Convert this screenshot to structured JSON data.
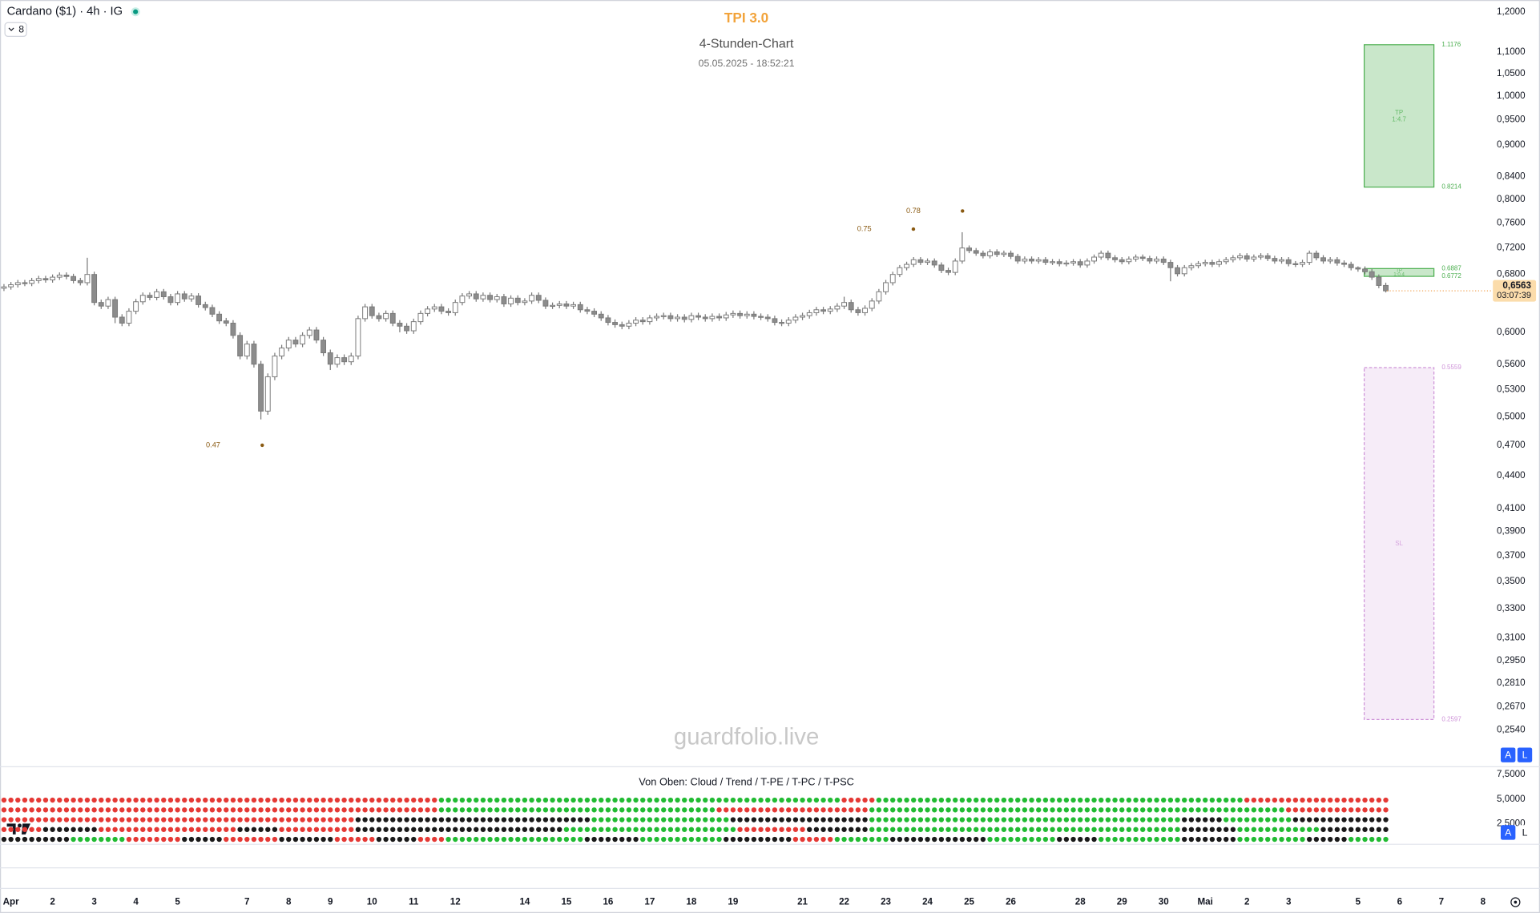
{
  "chart_data": {
    "type": "candlestick",
    "symbol": "Cardano ($1) · 4h · IG",
    "indicator_count": 8,
    "title": "TPI 3.0",
    "subtitle": "4-Stunden-Chart",
    "timestamp": "05.05.2025 - 18:52:21",
    "watermark": "guardfolio.live",
    "log_scale": true,
    "grid": false,
    "up_color": "#ffffff",
    "down_color": "#8c8c8c",
    "wick_color": "#7a7a7a",
    "ylim": [
      0.235,
      1.231
    ],
    "yticks": [
      {
        "value": 1.2,
        "label": "1,2000"
      },
      {
        "value": 1.1,
        "label": "1,1000"
      },
      {
        "value": 1.05,
        "label": "1,0500"
      },
      {
        "value": 1.0,
        "label": "1,0000"
      },
      {
        "value": 0.95,
        "label": "0,9500"
      },
      {
        "value": 0.9,
        "label": "0,9000"
      },
      {
        "value": 0.84,
        "label": "0,8400"
      },
      {
        "value": 0.8,
        "label": "0,8000"
      },
      {
        "value": 0.76,
        "label": "0,7600"
      },
      {
        "value": 0.72,
        "label": "0,7200"
      },
      {
        "value": 0.68,
        "label": "0,6800"
      },
      {
        "value": 0.6,
        "label": "0,6000"
      },
      {
        "value": 0.56,
        "label": "0,5600"
      },
      {
        "value": 0.53,
        "label": "0,5300"
      },
      {
        "value": 0.5,
        "label": "0,5000"
      },
      {
        "value": 0.47,
        "label": "0,4700"
      },
      {
        "value": 0.44,
        "label": "0,4400"
      },
      {
        "value": 0.41,
        "label": "0,4100"
      },
      {
        "value": 0.39,
        "label": "0,3900"
      },
      {
        "value": 0.37,
        "label": "0,3700"
      },
      {
        "value": 0.35,
        "label": "0,3500"
      },
      {
        "value": 0.33,
        "label": "0,3300"
      },
      {
        "value": 0.31,
        "label": "0,3100"
      },
      {
        "value": 0.295,
        "label": "0,2950"
      },
      {
        "value": 0.281,
        "label": "0,2810"
      },
      {
        "value": 0.267,
        "label": "0,2670"
      },
      {
        "value": 0.254,
        "label": "0,2540"
      }
    ],
    "categories": [
      null,
      "Apr",
      null,
      null,
      null,
      null,
      null,
      "2",
      null,
      null,
      null,
      null,
      null,
      "3",
      null,
      null,
      null,
      null,
      null,
      "4",
      null,
      null,
      null,
      null,
      null,
      "5",
      null,
      null,
      null,
      null,
      null,
      null,
      null,
      null,
      null,
      "7",
      null,
      null,
      null,
      null,
      null,
      "8",
      null,
      null,
      null,
      null,
      null,
      "9",
      null,
      null,
      null,
      null,
      null,
      "10",
      null,
      null,
      null,
      null,
      null,
      "11",
      null,
      null,
      null,
      null,
      null,
      "12",
      null,
      null,
      null,
      null,
      null,
      null,
      null,
      null,
      null,
      "14",
      null,
      null,
      null,
      null,
      null,
      "15",
      null,
      null,
      null,
      null,
      null,
      "16",
      null,
      null,
      null,
      null,
      null,
      "17",
      null,
      null,
      null,
      null,
      null,
      "18",
      null,
      null,
      null,
      null,
      null,
      "19",
      null,
      null,
      null,
      null,
      null,
      null,
      null,
      null,
      null,
      "21",
      null,
      null,
      null,
      null,
      null,
      "22",
      null,
      null,
      null,
      null,
      null,
      "23",
      null,
      null,
      null,
      null,
      null,
      "24",
      null,
      null,
      null,
      null,
      null,
      "25",
      null,
      null,
      null,
      null,
      null,
      "26",
      null,
      null,
      null,
      null,
      null,
      null,
      null,
      null,
      null,
      "28",
      null,
      null,
      null,
      null,
      null,
      "29",
      null,
      null,
      null,
      null,
      null,
      "30",
      null,
      null,
      null,
      null,
      null,
      "Mai",
      null,
      null,
      null,
      null,
      null,
      "2",
      null,
      null,
      null,
      null,
      null,
      "3",
      null,
      null,
      null,
      null,
      null,
      null,
      null,
      null,
      null,
      "5",
      null,
      null,
      null,
      null,
      null,
      "6",
      null,
      null,
      null,
      null,
      null,
      "7",
      null,
      null,
      null,
      null,
      null,
      "8",
      null,
      null,
      null
    ],
    "open": [
      0.66,
      0.662,
      0.665,
      0.668,
      0.667,
      0.671,
      0.674,
      0.672,
      0.676,
      0.679,
      0.677,
      0.671,
      0.668,
      0.68,
      0.64,
      0.635,
      0.644,
      0.62,
      0.612,
      0.628,
      0.641,
      0.65,
      0.647,
      0.655,
      0.648,
      0.64,
      0.652,
      0.645,
      0.649,
      0.637,
      0.633,
      0.624,
      0.615,
      0.612,
      0.596,
      0.57,
      0.585,
      0.56,
      0.506,
      0.545,
      0.57,
      0.58,
      0.59,
      0.585,
      0.596,
      0.603,
      0.59,
      0.574,
      0.56,
      0.568,
      0.563,
      0.57,
      0.618,
      0.634,
      0.622,
      0.618,
      0.625,
      0.612,
      0.608,
      0.602,
      0.614,
      0.625,
      0.631,
      0.634,
      0.628,
      0.626,
      0.64,
      0.649,
      0.652,
      0.645,
      0.65,
      0.644,
      0.648,
      0.638,
      0.646,
      0.64,
      0.642,
      0.65,
      0.643,
      0.635,
      0.636,
      0.638,
      0.635,
      0.637,
      0.63,
      0.628,
      0.624,
      0.619,
      0.613,
      0.61,
      0.608,
      0.612,
      0.616,
      0.614,
      0.619,
      0.621,
      0.622,
      0.618,
      0.62,
      0.617,
      0.622,
      0.62,
      0.618,
      0.621,
      0.619,
      0.623,
      0.625,
      0.622,
      0.624,
      0.621,
      0.62,
      0.618,
      0.613,
      0.612,
      0.616,
      0.62,
      0.622,
      0.626,
      0.63,
      0.628,
      0.631,
      0.635,
      0.64,
      0.63,
      0.626,
      0.632,
      0.642,
      0.655,
      0.668,
      0.68,
      0.69,
      0.695,
      0.702,
      0.698,
      0.7,
      0.694,
      0.686,
      0.683,
      0.7,
      0.72,
      0.716,
      0.712,
      0.708,
      0.714,
      0.71,
      0.712,
      0.707,
      0.7,
      0.703,
      0.7,
      0.702,
      0.698,
      0.699,
      0.696,
      0.697,
      0.699,
      0.694,
      0.7,
      0.706,
      0.712,
      0.705,
      0.702,
      0.699,
      0.703,
      0.706,
      0.704,
      0.7,
      0.703,
      0.698,
      0.69,
      0.681,
      0.69,
      0.693,
      0.696,
      0.698,
      0.695,
      0.699,
      0.702,
      0.705,
      0.708,
      0.703,
      0.706,
      0.708,
      0.704,
      0.7,
      0.702,
      0.696,
      0.695,
      0.698,
      0.712,
      0.705,
      0.7,
      0.702,
      0.697,
      0.695,
      0.69,
      0.688,
      0.684,
      0.676,
      0.664,
      null,
      null,
      null,
      null,
      null,
      null,
      null,
      null,
      null,
      null,
      null,
      null,
      null,
      null,
      null,
      null,
      null
    ],
    "high": [
      0.666,
      0.669,
      0.672,
      0.672,
      0.675,
      0.678,
      0.678,
      0.68,
      0.683,
      0.683,
      0.681,
      0.675,
      0.705,
      0.684,
      0.644,
      0.648,
      0.648,
      0.624,
      0.632,
      0.645,
      0.654,
      0.654,
      0.659,
      0.659,
      0.652,
      0.656,
      0.656,
      0.653,
      0.653,
      0.641,
      0.637,
      0.628,
      0.619,
      0.616,
      0.6,
      0.589,
      0.589,
      0.564,
      0.549,
      0.574,
      0.584,
      0.594,
      0.594,
      0.6,
      0.607,
      0.607,
      0.594,
      0.578,
      0.572,
      0.572,
      0.574,
      0.622,
      0.638,
      0.638,
      0.626,
      0.629,
      0.629,
      0.616,
      0.612,
      0.618,
      0.629,
      0.635,
      0.638,
      0.638,
      0.632,
      0.644,
      0.653,
      0.656,
      0.656,
      0.654,
      0.654,
      0.652,
      0.652,
      0.65,
      0.65,
      0.646,
      0.654,
      0.654,
      0.647,
      0.64,
      0.642,
      0.642,
      0.641,
      0.641,
      0.634,
      0.632,
      0.628,
      0.623,
      0.617,
      0.614,
      0.616,
      0.62,
      0.62,
      0.623,
      0.625,
      0.626,
      0.626,
      0.624,
      0.624,
      0.626,
      0.626,
      0.624,
      0.625,
      0.625,
      0.627,
      0.629,
      0.629,
      0.628,
      0.628,
      0.625,
      0.624,
      0.622,
      0.617,
      0.62,
      0.624,
      0.626,
      0.63,
      0.634,
      0.634,
      0.635,
      0.639,
      0.648,
      0.644,
      0.634,
      0.636,
      0.646,
      0.659,
      0.672,
      0.684,
      0.694,
      0.699,
      0.706,
      0.706,
      0.704,
      0.704,
      0.698,
      0.69,
      0.704,
      0.745,
      0.724,
      0.72,
      0.716,
      0.718,
      0.718,
      0.716,
      0.716,
      0.711,
      0.707,
      0.707,
      0.706,
      0.706,
      0.703,
      0.703,
      0.701,
      0.703,
      0.703,
      0.704,
      0.71,
      0.716,
      0.716,
      0.709,
      0.706,
      0.707,
      0.71,
      0.71,
      0.708,
      0.707,
      0.707,
      0.702,
      0.694,
      0.694,
      0.697,
      0.7,
      0.702,
      0.702,
      0.703,
      0.706,
      0.709,
      0.712,
      0.712,
      0.71,
      0.712,
      0.712,
      0.708,
      0.706,
      0.706,
      0.7,
      0.702,
      0.716,
      0.716,
      0.709,
      0.706,
      0.706,
      0.701,
      0.699,
      0.692,
      0.692,
      0.688,
      0.68,
      0.668,
      null,
      null,
      null,
      null,
      null,
      null,
      null,
      null,
      null,
      null,
      null,
      null,
      null,
      null,
      null,
      null,
      null
    ],
    "low": [
      0.656,
      0.658,
      0.661,
      0.663,
      0.663,
      0.667,
      0.668,
      0.668,
      0.672,
      0.673,
      0.667,
      0.664,
      0.664,
      0.636,
      0.631,
      0.631,
      0.612,
      0.608,
      0.608,
      0.624,
      0.637,
      0.643,
      0.643,
      0.644,
      0.636,
      0.636,
      0.641,
      0.641,
      0.633,
      0.629,
      0.62,
      0.611,
      0.608,
      0.592,
      0.566,
      0.566,
      0.556,
      0.497,
      0.502,
      0.541,
      0.566,
      0.576,
      0.581,
      0.581,
      0.592,
      0.586,
      0.57,
      0.553,
      0.556,
      0.559,
      0.559,
      0.566,
      0.614,
      0.618,
      0.614,
      0.614,
      0.608,
      0.6,
      0.598,
      0.598,
      0.61,
      0.621,
      0.627,
      0.624,
      0.622,
      0.622,
      0.636,
      0.645,
      0.641,
      0.641,
      0.64,
      0.64,
      0.634,
      0.634,
      0.636,
      0.636,
      0.638,
      0.639,
      0.631,
      0.631,
      0.632,
      0.631,
      0.631,
      0.626,
      0.624,
      0.62,
      0.615,
      0.609,
      0.606,
      0.604,
      0.604,
      0.608,
      0.61,
      0.61,
      0.615,
      0.617,
      0.614,
      0.614,
      0.613,
      0.613,
      0.616,
      0.614,
      0.614,
      0.615,
      0.615,
      0.619,
      0.618,
      0.618,
      0.617,
      0.616,
      0.614,
      0.609,
      0.608,
      0.608,
      0.612,
      0.616,
      0.618,
      0.622,
      0.624,
      0.624,
      0.627,
      0.631,
      0.626,
      0.622,
      0.622,
      0.628,
      0.638,
      0.651,
      0.664,
      0.676,
      0.686,
      0.691,
      0.694,
      0.694,
      0.69,
      0.682,
      0.679,
      0.679,
      0.696,
      0.712,
      0.708,
      0.704,
      0.704,
      0.706,
      0.706,
      0.703,
      0.696,
      0.696,
      0.696,
      0.696,
      0.694,
      0.694,
      0.692,
      0.692,
      0.693,
      0.69,
      0.69,
      0.696,
      0.702,
      0.701,
      0.698,
      0.695,
      0.695,
      0.699,
      0.7,
      0.696,
      0.696,
      0.694,
      0.67,
      0.677,
      0.677,
      0.686,
      0.689,
      0.692,
      0.691,
      0.691,
      0.695,
      0.698,
      0.701,
      0.699,
      0.699,
      0.702,
      0.7,
      0.696,
      0.696,
      0.692,
      0.691,
      0.691,
      0.694,
      0.701,
      0.696,
      0.696,
      0.693,
      0.691,
      0.686,
      0.684,
      0.68,
      0.672,
      0.66,
      0.654,
      null,
      null,
      null,
      null,
      null,
      null,
      null,
      null,
      null,
      null,
      null,
      null,
      null,
      null,
      null,
      null,
      null
    ],
    "close": [
      0.662,
      0.665,
      0.668,
      0.667,
      0.671,
      0.674,
      0.672,
      0.676,
      0.679,
      0.677,
      0.671,
      0.668,
      0.68,
      0.64,
      0.635,
      0.644,
      0.62,
      0.612,
      0.628,
      0.641,
      0.65,
      0.647,
      0.655,
      0.648,
      0.64,
      0.652,
      0.645,
      0.649,
      0.637,
      0.633,
      0.624,
      0.615,
      0.612,
      0.596,
      0.57,
      0.585,
      0.56,
      0.506,
      0.545,
      0.57,
      0.58,
      0.59,
      0.585,
      0.596,
      0.603,
      0.59,
      0.574,
      0.56,
      0.568,
      0.563,
      0.57,
      0.618,
      0.634,
      0.622,
      0.618,
      0.625,
      0.612,
      0.608,
      0.602,
      0.614,
      0.625,
      0.631,
      0.634,
      0.628,
      0.626,
      0.64,
      0.649,
      0.652,
      0.645,
      0.65,
      0.644,
      0.648,
      0.638,
      0.646,
      0.64,
      0.642,
      0.65,
      0.643,
      0.635,
      0.636,
      0.638,
      0.635,
      0.637,
      0.63,
      0.628,
      0.624,
      0.619,
      0.613,
      0.61,
      0.608,
      0.612,
      0.616,
      0.614,
      0.619,
      0.621,
      0.622,
      0.618,
      0.62,
      0.617,
      0.622,
      0.62,
      0.618,
      0.621,
      0.619,
      0.623,
      0.625,
      0.622,
      0.624,
      0.621,
      0.62,
      0.618,
      0.613,
      0.612,
      0.616,
      0.62,
      0.622,
      0.626,
      0.63,
      0.628,
      0.631,
      0.635,
      0.64,
      0.63,
      0.626,
      0.632,
      0.642,
      0.655,
      0.668,
      0.68,
      0.69,
      0.695,
      0.702,
      0.698,
      0.7,
      0.694,
      0.686,
      0.683,
      0.7,
      0.72,
      0.716,
      0.712,
      0.708,
      0.714,
      0.71,
      0.712,
      0.707,
      0.7,
      0.703,
      0.7,
      0.702,
      0.698,
      0.699,
      0.696,
      0.697,
      0.699,
      0.694,
      0.7,
      0.706,
      0.712,
      0.705,
      0.702,
      0.699,
      0.703,
      0.706,
      0.704,
      0.7,
      0.703,
      0.698,
      0.69,
      0.681,
      0.69,
      0.693,
      0.696,
      0.698,
      0.695,
      0.699,
      0.702,
      0.705,
      0.708,
      0.703,
      0.706,
      0.708,
      0.704,
      0.7,
      0.702,
      0.696,
      0.695,
      0.698,
      0.712,
      0.705,
      0.7,
      0.702,
      0.697,
      0.695,
      0.69,
      0.688,
      0.684,
      0.676,
      0.664,
      0.6563,
      null,
      null,
      null,
      null,
      null,
      null,
      null,
      null,
      null,
      null,
      null,
      null,
      null,
      null,
      null,
      null,
      null
    ],
    "last_price": {
      "value": 0.6563,
      "label": "0,6563"
    },
    "countdown": "03:07:39",
    "annotations": [
      0.47,
      0.75,
      0.78
    ],
    "annotation_color": "#8a5a12",
    "trade_boxes": [
      {
        "top": 1.1176,
        "bottom": 0.8214,
        "label": "TP",
        "ratio": "1:4.7",
        "color": "#4caf50"
      },
      {
        "top": 0.6887,
        "bottom": 0.6772,
        "label": "TP",
        "ratio": "1:0.4",
        "color": "#4caf50"
      },
      {
        "top": 0.5559,
        "bottom": 0.2597,
        "label": "SL",
        "color": "#ce93d8"
      }
    ],
    "scale_buttons": [
      "A",
      "L"
    ],
    "lower_panel": {
      "title": "Von Oben: Cloud / Trend / T-PE / T-PC / T-PSC",
      "ylim": [
        0.4,
        8.2
      ],
      "yticks": [
        {
          "value": 7.5,
          "label": "7,5000"
        },
        {
          "value": 5,
          "label": "5,0000"
        },
        {
          "value": 2.5,
          "label": "2,5000"
        }
      ],
      "palette": {
        "r": "#e53935",
        "g": "#22bb33",
        "k": "#1a1a1a"
      },
      "rows": [
        "rrrrrrrrrrrrrrrrrrrrrrrrrrrrrrrrrrrrrrrrrrrrrrrrrrrrrrrrrrrrrrrggggggggggggggggggggggggggggggggggggggggggggggggggggggggggrrrrrgggggggggggggggggggggggggggggggggggggggggggggggggggggrrrrrrrrrrrrrrrrrrrrr",
        "rrrrrrrrrrrrrrrrrrrrrrrrrrrrrrrrrrrrrrrrrrrrrrrrrrrrrrrrrrrrrrrggggggggggggggggggggggggggggggggggggggggrrrrrrrrrrrrrrrrrrrrrrggggggggggggggggggggggggggggggggggggggggggggggggggggggggggggrrrrrrrrrrrrrrr",
        "rrrrrrrrrrrrrrrrrrrrrrrrrrrrrrrrrrrrrrrrrrrrrrrrrrrkkkkkkkkkkkkkkkkkkkkkkkkkkkkkkkkkkggggggggggggggggggggkkkkkkkkkkkkkkkkkkkkgggggggggggggggggggggggggggggggggggggggggggggkkkkkkggggggggggkkkkkkkkkkkkkk",
        "rrrrrrkkkkkkkkrrrrrrrrrrrrrrrrrrrrkkkkkkrrrrrrrrrrrkkkkkkkkkkkkkkkkkkkkkkkkkkkkkkgggggggggggggggggggggggggrrrrrrrrrrkkkkkkkkkgggggggggggggggggggggggggggggggggggggggggggggkkkkkkkkggggggggggggkkkkkkkkkk",
        "kkkkkkkkkkggggggggrrrrrrrrkkkkkkrrrrrrrrkkkkkkkkrrrrrrkkkkkkrrrrggggggggggggggggggggkkkkkkkkggggggggggggkkkkkkkkkkrrrrrrggggggggkkkkkkkkkkkkkkggggggggggkkkkkkggggggggggggkkkkkkkkggggggggggkkkkkkgggggg"
      ]
    }
  }
}
